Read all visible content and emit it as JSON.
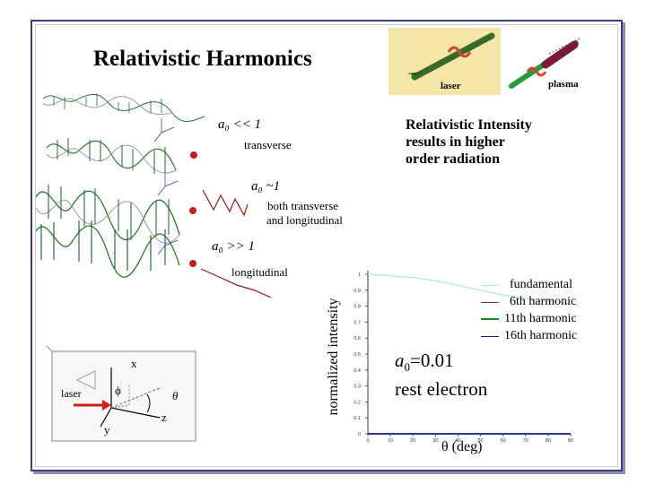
{
  "title": "Relativistic Harmonics",
  "thumbnail": {
    "laser_label": "laser",
    "plasma_label": "plasma"
  },
  "intensity_note": [
    "Relativistic Intensity",
    "results in higher",
    "order radiation"
  ],
  "regimes": [
    {
      "a0_text": "a₀ << 1",
      "motion": "transverse"
    },
    {
      "a0_text": "a₀ ~1",
      "motion": "both transverse and longitudinal"
    },
    {
      "a0_text": "a₀ >> 1",
      "motion": "longitudinal"
    }
  ],
  "motion_lines": {
    "both1": "both transverse",
    "both2": "and longitudinal"
  },
  "geometry_diagram": {
    "x": "x",
    "y": "y",
    "z": "z",
    "phi": "ϕ",
    "theta": "θ",
    "laser": "laser"
  },
  "params": {
    "a0": "a",
    "a0_sub": "0",
    "a0_value": "=0.01",
    "electron": "rest electron"
  },
  "chart_data": {
    "type": "line",
    "xlabel": "θ (deg)",
    "ylabel": "normalized intensity",
    "xlim": [
      0,
      90
    ],
    "ylim": [
      0,
      1
    ],
    "xticks": [
      "0",
      "10",
      "20",
      "30",
      "40",
      "50",
      "60",
      "70",
      "80",
      "90"
    ],
    "yticks": [
      "0",
      "0.1",
      "0.2",
      "0.3",
      "0.4",
      "0.5",
      "0.6",
      "0.7",
      "0.8",
      "0.9",
      "1"
    ],
    "series": [
      {
        "name": "fundamental",
        "color": "#aee6e6",
        "x": [
          0,
          10,
          20,
          30,
          40,
          50,
          60,
          70,
          80,
          90
        ],
        "y": [
          1,
          0.99,
          0.98,
          0.96,
          0.93,
          0.9,
          0.87,
          0.85,
          0.83,
          0.82
        ]
      },
      {
        "name": "6th harmonic",
        "color": "#9c1f8c",
        "x": [
          0,
          10,
          20,
          30,
          40,
          50,
          60,
          70,
          80,
          90
        ],
        "y": [
          0,
          0,
          0,
          0,
          0,
          0,
          0,
          0,
          0,
          0
        ]
      },
      {
        "name": "11th harmonic",
        "color": "#1a8a1a",
        "x": [
          0,
          10,
          20,
          30,
          40,
          50,
          60,
          70,
          80,
          90
        ],
        "y": [
          0,
          0,
          0,
          0,
          0,
          0,
          0,
          0,
          0,
          0
        ]
      },
      {
        "name": "16th harmonic",
        "color": "#1a1a7a",
        "x": [
          0,
          10,
          20,
          30,
          40,
          50,
          60,
          70,
          80,
          90
        ],
        "y": [
          0,
          0,
          0,
          0,
          0,
          0,
          0,
          0,
          0,
          0
        ]
      }
    ],
    "legend": [
      "fundamental",
      "6th harmonic",
      "11th harmonic",
      "16th harmonic"
    ],
    "legend_position": "top-right",
    "grid": false
  }
}
